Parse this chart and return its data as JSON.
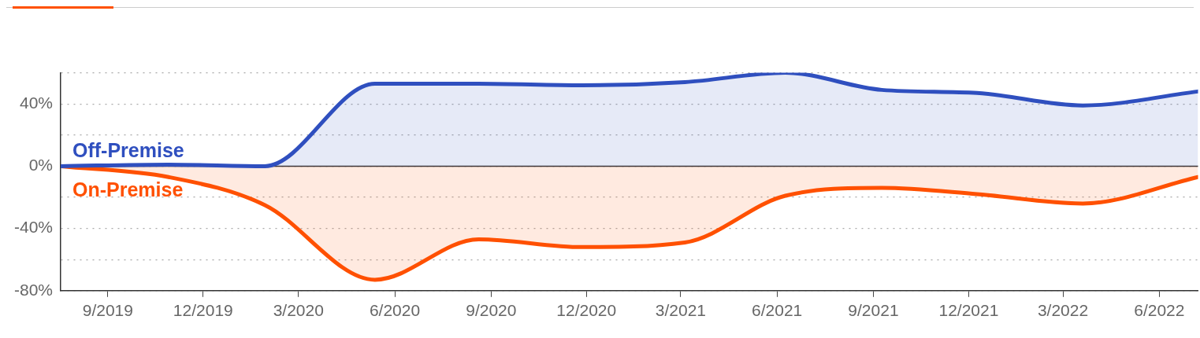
{
  "chart_data": {
    "type": "area",
    "x": [
      "2019-07-18",
      "2019-10-29",
      "2020-01-29",
      "2020-05-13",
      "2020-08-20",
      "2020-11-27",
      "2021-03-05",
      "2021-06-09",
      "2021-09-09",
      "2021-12-09",
      "2022-03-20",
      "2022-07-08"
    ],
    "series": [
      {
        "name": "Off-Premise",
        "color": "#2f4fbf",
        "values": [
          0,
          1,
          0,
          53,
          53,
          52,
          54,
          60,
          49,
          47,
          39,
          48
        ]
      },
      {
        "name": "On-Premise",
        "color": "#ff5000",
        "values": [
          0,
          -7,
          -25,
          -73,
          -47,
          -52,
          -49,
          -19,
          -14,
          -18,
          -24,
          -7
        ]
      }
    ],
    "xlim": [
      "2019-07-18",
      "2022-07-08"
    ],
    "xticks": [
      {
        "value": "2019-09",
        "label": "9/2019"
      },
      {
        "value": "2019-12",
        "label": "12/2019"
      },
      {
        "value": "2020-03",
        "label": "3/2020"
      },
      {
        "value": "2020-06",
        "label": "6/2020"
      },
      {
        "value": "2020-09",
        "label": "9/2020"
      },
      {
        "value": "2020-12",
        "label": "12/2020"
      },
      {
        "value": "2021-03",
        "label": "3/2021"
      },
      {
        "value": "2021-06",
        "label": "6/2021"
      },
      {
        "value": "2021-09",
        "label": "9/2021"
      },
      {
        "value": "2021-12",
        "label": "12/2021"
      },
      {
        "value": "2022-03",
        "label": "3/2022"
      },
      {
        "value": "2022-06",
        "label": "6/2022"
      }
    ],
    "ylim": [
      -80,
      60
    ],
    "yticks": [
      {
        "value": -80,
        "label": "-80%"
      },
      {
        "value": -60,
        "label": null
      },
      {
        "value": -40,
        "label": "-40%"
      },
      {
        "value": -20,
        "label": null
      },
      {
        "value": 0,
        "label": "0%"
      },
      {
        "value": 20,
        "label": null
      },
      {
        "value": 40,
        "label": "40%"
      },
      {
        "value": 60,
        "label": null
      }
    ],
    "grid": "y",
    "legend": false,
    "marker": "none",
    "line_style": "solid"
  }
}
